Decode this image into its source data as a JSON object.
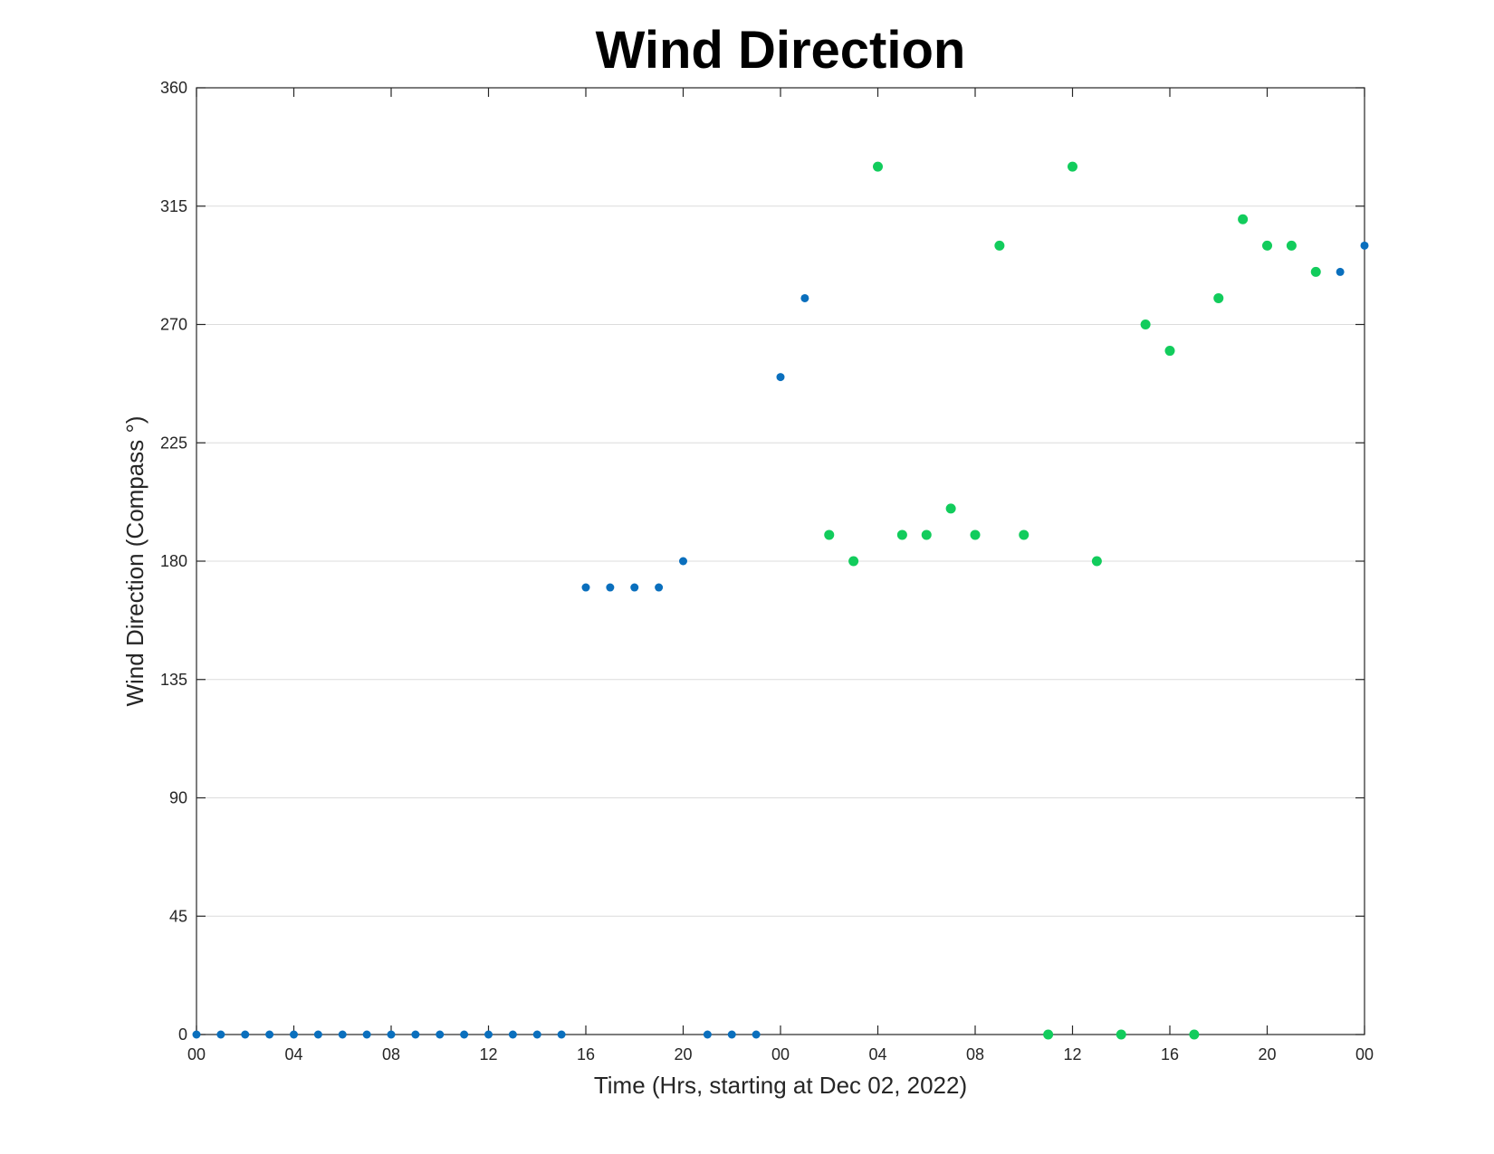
{
  "chart_data": {
    "type": "scatter",
    "title": "Wind Direction",
    "xlabel": "Time (Hrs, starting at Dec 02, 2022)",
    "ylabel": "Wind Direction (Compass °)",
    "x_unit": "hours since 2022-12-02 00:00",
    "xlim": [
      0,
      48
    ],
    "ylim": [
      0,
      360
    ],
    "x_ticks": [
      0,
      4,
      8,
      12,
      16,
      20,
      24,
      28,
      32,
      36,
      40,
      44,
      48
    ],
    "x_tick_labels": [
      "00",
      "04",
      "08",
      "12",
      "16",
      "20",
      "00",
      "04",
      "08",
      "12",
      "16",
      "20",
      "00"
    ],
    "y_ticks": [
      0,
      45,
      90,
      135,
      180,
      225,
      270,
      315,
      360
    ],
    "grid": "y",
    "legend": "none",
    "series": [
      {
        "color": "#0a6fbd",
        "points": [
          [
            0,
            0
          ],
          [
            1,
            0
          ],
          [
            2,
            0
          ],
          [
            3,
            0
          ],
          [
            4,
            0
          ],
          [
            5,
            0
          ],
          [
            6,
            0
          ],
          [
            7,
            0
          ],
          [
            8,
            0
          ],
          [
            9,
            0
          ],
          [
            10,
            0
          ],
          [
            11,
            0
          ],
          [
            12,
            0
          ],
          [
            13,
            0
          ],
          [
            14,
            0
          ],
          [
            15,
            0
          ],
          [
            16,
            170
          ],
          [
            17,
            170
          ],
          [
            18,
            170
          ],
          [
            19,
            170
          ],
          [
            20,
            180
          ],
          [
            21,
            0
          ],
          [
            22,
            0
          ],
          [
            23,
            0
          ],
          [
            24,
            250
          ],
          [
            25,
            280
          ],
          [
            47,
            290
          ],
          [
            48,
            300
          ]
        ]
      },
      {
        "color": "#12cc5c",
        "points": [
          [
            26,
            190
          ],
          [
            27,
            180
          ],
          [
            28,
            330
          ],
          [
            29,
            190
          ],
          [
            30,
            190
          ],
          [
            31,
            200
          ],
          [
            32,
            190
          ],
          [
            33,
            300
          ],
          [
            34,
            190
          ],
          [
            35,
            0
          ],
          [
            36,
            330
          ],
          [
            37,
            180
          ],
          [
            38,
            0
          ],
          [
            39,
            270
          ],
          [
            40,
            260
          ],
          [
            41,
            0
          ],
          [
            42,
            280
          ],
          [
            43,
            310
          ],
          [
            44,
            300
          ],
          [
            45,
            300
          ],
          [
            46,
            290
          ]
        ]
      }
    ]
  }
}
